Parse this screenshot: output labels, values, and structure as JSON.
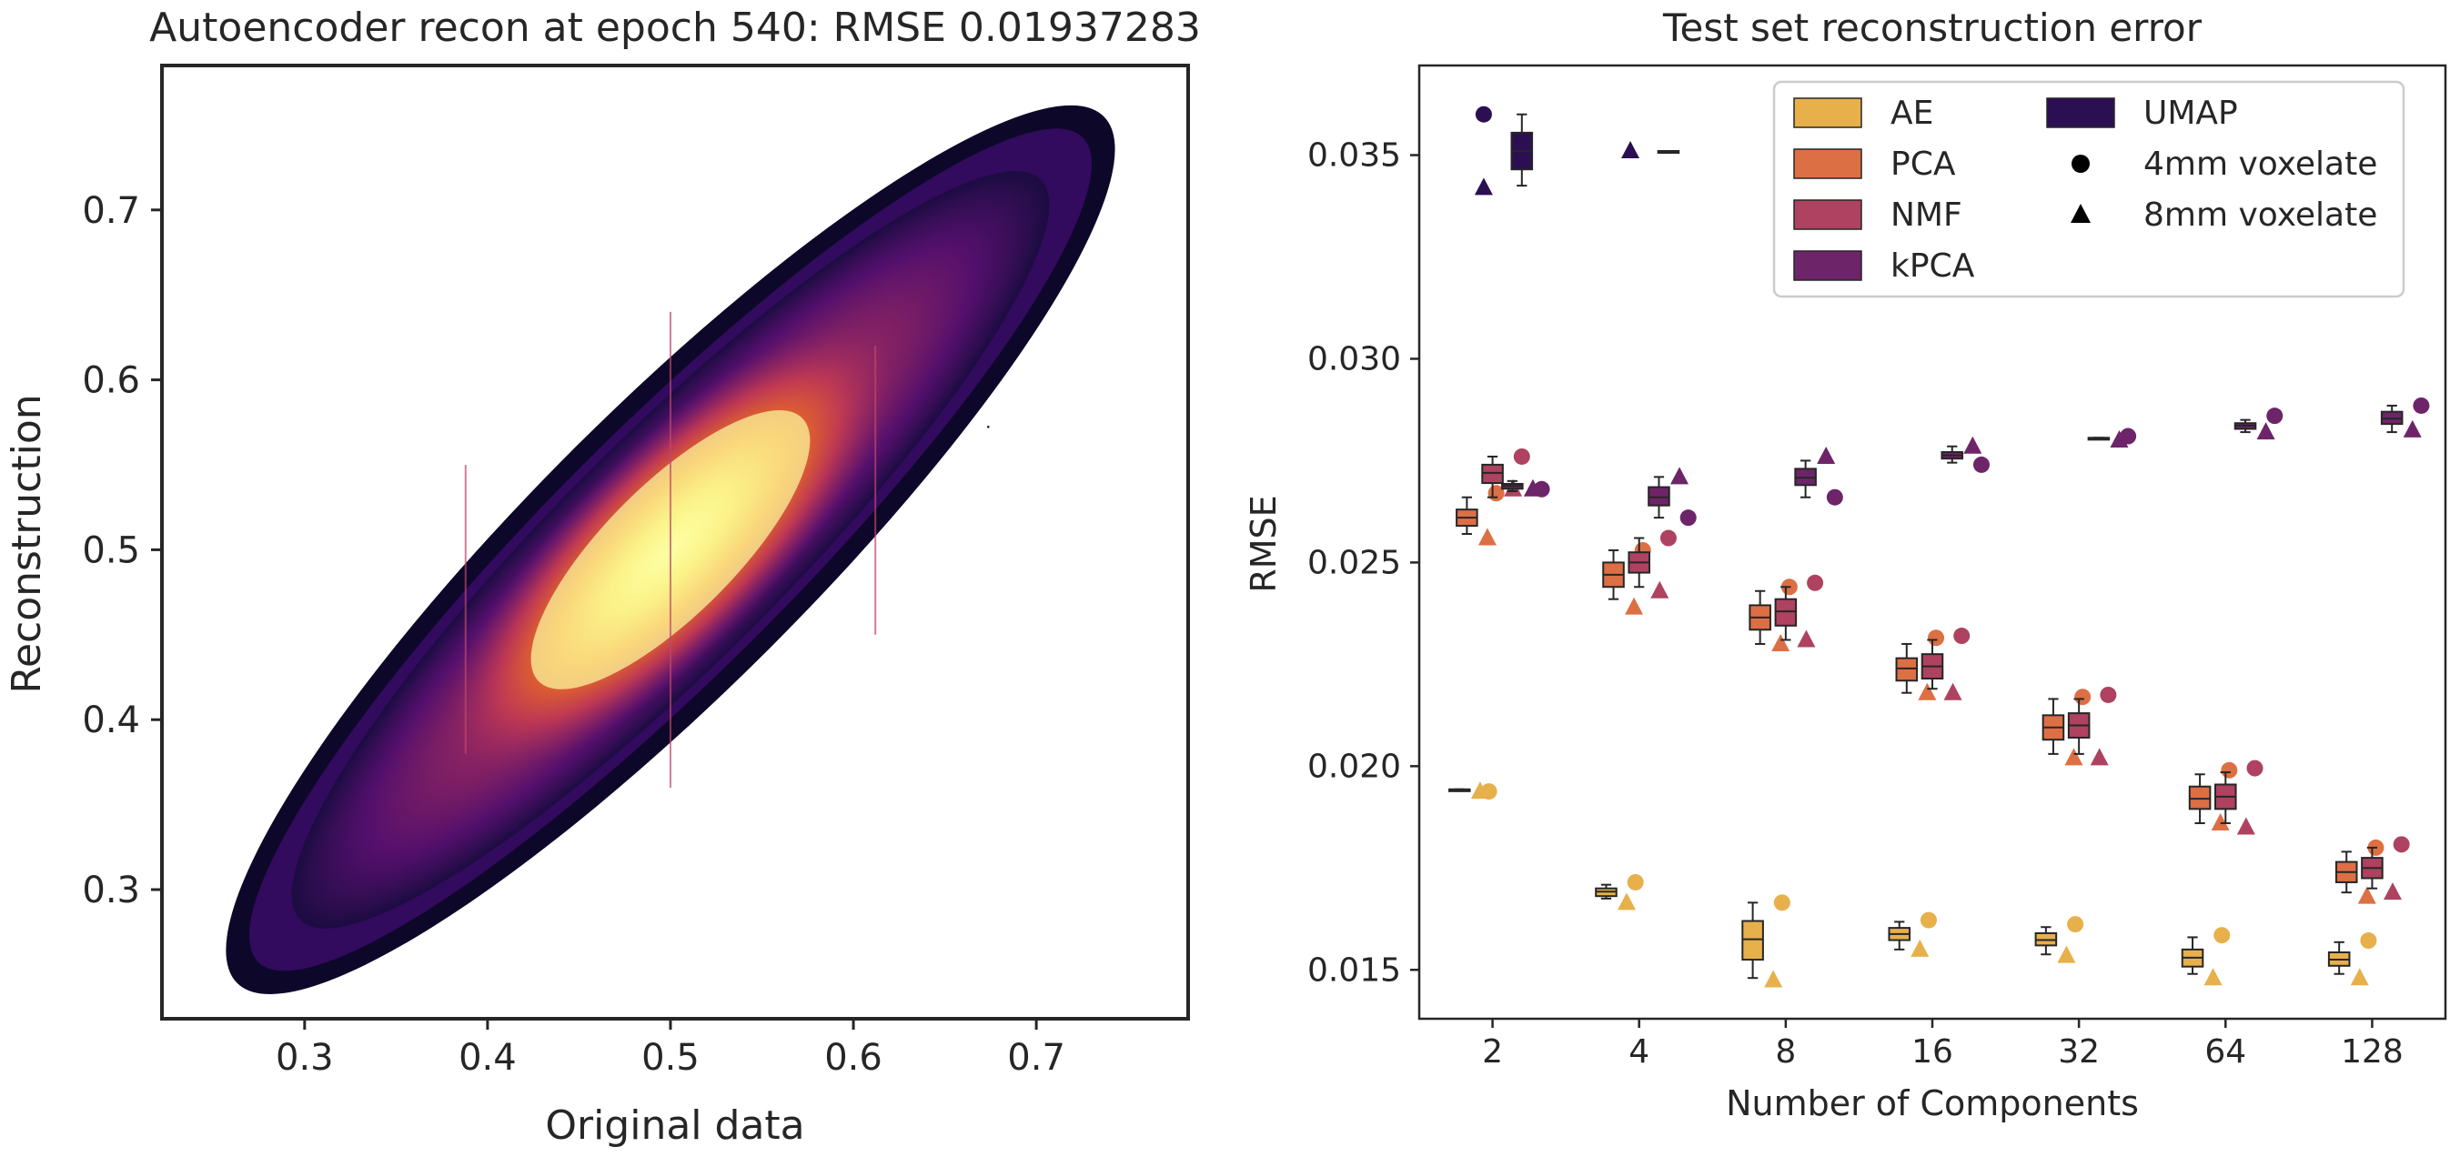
{
  "chart_data": [
    {
      "type": "heatmap",
      "title": "Autoencoder recon at epoch 540: RMSE 0.01937283",
      "xlabel": "Original data",
      "ylabel": "Reconstruction",
      "xlim": [
        0.222,
        0.783
      ],
      "ylim": [
        0.224,
        0.785
      ],
      "xticks": [
        0.3,
        0.4,
        0.5,
        0.6,
        0.7
      ],
      "yticks": [
        0.3,
        0.4,
        0.5,
        0.6,
        0.7
      ],
      "tick_labels": [
        "0.3",
        "0.4",
        "0.5",
        "0.6",
        "0.7"
      ],
      "colormap": "inferno",
      "density": {
        "center": [
          0.5,
          0.5
        ],
        "main_axis_range": [
          0.27,
          0.73
        ],
        "core_value_range": [
          0.44,
          0.56
        ],
        "outlier_range": [
          0.25,
          0.76
        ]
      },
      "vertical_artifacts_x": [
        0.388,
        0.5,
        0.612
      ]
    },
    {
      "type": "box",
      "title": "Test set reconstruction error",
      "xlabel": "Number of Components",
      "ylabel": "RMSE",
      "categories": [
        "2",
        "4",
        "8",
        "16",
        "32",
        "64",
        "128"
      ],
      "ylim": [
        0.0138,
        0.0372
      ],
      "yticks": [
        0.015,
        0.02,
        0.025,
        0.03,
        0.035
      ],
      "ytick_labels": [
        "0.015",
        "0.020",
        "0.025",
        "0.030",
        "0.035"
      ],
      "grid": false,
      "legend_position": "top-right",
      "legend": {
        "methods": [
          "AE",
          "PCA",
          "NMF",
          "kPCA",
          "UMAP"
        ],
        "markers": [
          {
            "label": "4mm voxelate",
            "shape": "circle"
          },
          {
            "label": "8mm voxelate",
            "shape": "triangle"
          }
        ]
      },
      "series": [
        {
          "name": "AE",
          "color": "#e7b04b",
          "boxes": [
            [
              0.01943,
              0.01943,
              0.01943,
              0.01943,
              0.01943
            ],
            [
              0.01675,
              0.01681,
              0.01692,
              0.017,
              0.01709
            ],
            [
              0.0148,
              0.01525,
              0.01575,
              0.0162,
              0.01665
            ],
            [
              0.0155,
              0.01573,
              0.01588,
              0.01603,
              0.01618
            ],
            [
              0.01538,
              0.0156,
              0.01573,
              0.0159,
              0.01605
            ],
            [
              0.0149,
              0.01508,
              0.0153,
              0.0155,
              0.0158
            ],
            [
              0.0149,
              0.0151,
              0.01525,
              0.01543,
              0.01568
            ]
          ],
          "circle": [
            0.01938,
            0.01715,
            0.01665,
            0.01622,
            0.01612,
            0.01585,
            0.01572
          ],
          "triangle": [
            0.01938,
            0.01665,
            0.01475,
            0.0155,
            0.01535,
            0.0148,
            0.0148
          ]
        },
        {
          "name": "PCA",
          "color": "#dd6f44",
          "boxes": [
            [
              0.0257,
              0.0259,
              0.0261,
              0.0263,
              0.0266
            ],
            [
              0.0241,
              0.0244,
              0.0247,
              0.025,
              0.0253
            ],
            [
              0.023,
              0.02335,
              0.02365,
              0.02395,
              0.0243
            ],
            [
              0.0218,
              0.0221,
              0.0224,
              0.02265,
              0.023
            ],
            [
              0.0203,
              0.02065,
              0.02095,
              0.02125,
              0.02165
            ],
            [
              0.0186,
              0.01895,
              0.0192,
              0.0195,
              0.0198
            ],
            [
              0.0169,
              0.01715,
              0.0174,
              0.01765,
              0.0179
            ]
          ],
          "circle": [
            0.0267,
            0.0253,
            0.0244,
            0.02315,
            0.0217,
            0.0199,
            0.018
          ],
          "triangle": [
            0.0256,
            0.0239,
            0.023,
            0.0218,
            0.0202,
            0.0186,
            0.0168
          ]
        },
        {
          "name": "NMF",
          "color": "#ae4260",
          "boxes": [
            [
              0.0266,
              0.02695,
              0.0272,
              0.0274,
              0.0276
            ],
            [
              0.0244,
              0.02475,
              0.025,
              0.02525,
              0.0256
            ],
            [
              0.0231,
              0.02345,
              0.0238,
              0.0241,
              0.0244
            ],
            [
              0.0219,
              0.02215,
              0.02245,
              0.02275,
              0.0231
            ],
            [
              0.0203,
              0.0207,
              0.021,
              0.0213,
              0.02165
            ],
            [
              0.0186,
              0.01895,
              0.01925,
              0.01955,
              0.01985
            ],
            [
              0.017,
              0.01725,
              0.0175,
              0.01775,
              0.018
            ]
          ],
          "circle": [
            0.0276,
            0.0256,
            0.0245,
            0.0232,
            0.02175,
            0.01995,
            0.01808
          ],
          "triangle": [
            0.0268,
            0.0243,
            0.0231,
            0.0218,
            0.0202,
            0.0185,
            0.0169
          ]
        },
        {
          "name": "kPCA",
          "color": "#6e2469",
          "boxes": [
            [
              0.02675,
              0.02681,
              0.02688,
              0.02693,
              0.027
            ],
            [
              0.0261,
              0.0264,
              0.0266,
              0.02685,
              0.0271
            ],
            [
              0.0266,
              0.0269,
              0.02708,
              0.0273,
              0.0275
            ],
            [
              0.02745,
              0.02755,
              0.02763,
              0.02771,
              0.02785
            ],
            [
              0.02806,
              0.02806,
              0.02806,
              0.02806,
              0.02806
            ],
            [
              0.0282,
              0.02828,
              0.02836,
              0.02842,
              0.0285
            ],
            [
              0.0282,
              0.0284,
              0.02853,
              0.0287,
              0.02885
            ]
          ],
          "circle": [
            0.0268,
            0.0261,
            0.0266,
            0.0274,
            0.0281,
            0.0286,
            0.02885
          ],
          "triangle": [
            0.0268,
            0.0271,
            0.0276,
            0.02785,
            0.028,
            0.0282,
            0.02825
          ]
        },
        {
          "name": "UMAP",
          "color": "#2b0f52",
          "boxes": [
            [
              0.03425,
              0.03465,
              0.0351,
              0.03555,
              0.036
            ],
            [
              0.0351,
              0.0351,
              0.0351,
              0.0351,
              0.0351
            ]
          ],
          "circle": [
            0.036,
            null,
            null,
            null,
            null,
            null,
            null
          ],
          "triangle": [
            0.0342,
            0.0351,
            null,
            null,
            null,
            null,
            null
          ]
        }
      ]
    }
  ]
}
